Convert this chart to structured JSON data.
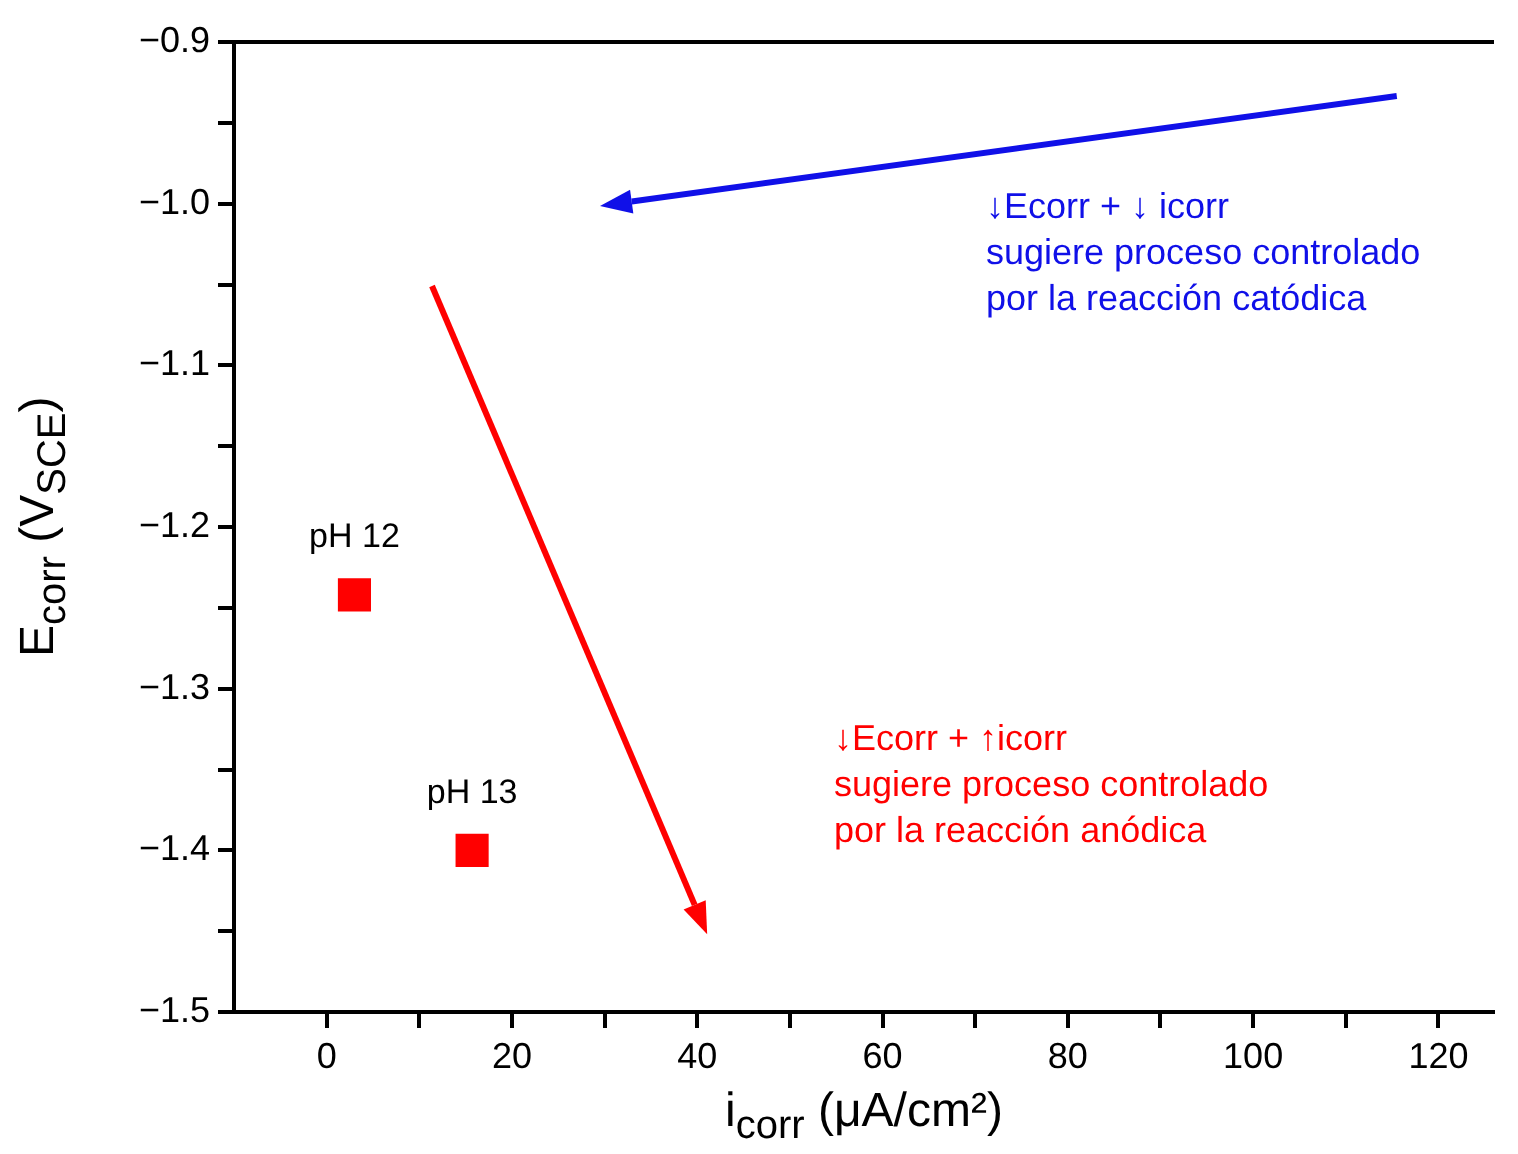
{
  "chart_data": {
    "type": "scatter",
    "xlabel": "i$_{corr}$ (μA/cm²)",
    "ylabel": "E$_{corr}$ (V$_{SCE}$)",
    "x": [
      3,
      15.7
    ],
    "series": [
      {
        "color": "#ff0000",
        "values": [
          -1.242,
          -1.4
        ]
      }
    ],
    "marker": "square",
    "grid": false,
    "legend": false,
    "xlim": [
      -10,
      126
    ],
    "ylim": [
      -1.5,
      -0.9
    ],
    "xticks": [
      0,
      {
        "value": 10,
        "label": null
      },
      20,
      {
        "value": 30,
        "label": null
      },
      40,
      {
        "value": 50,
        "label": null
      },
      60,
      {
        "value": 70,
        "label": null
      },
      80,
      {
        "value": 90,
        "label": null
      },
      100,
      {
        "value": 110,
        "label": null
      },
      120
    ],
    "yticks": [
      {
        "value": -1.5,
        "label": "−1.5"
      },
      {
        "value": -1.45,
        "label": null
      },
      {
        "value": -1.4,
        "label": "−1.4"
      },
      {
        "value": -1.35,
        "label": null
      },
      {
        "value": -1.3,
        "label": "−1.3"
      },
      {
        "value": -1.25,
        "label": null
      },
      {
        "value": -1.2,
        "label": "−1.2"
      },
      {
        "value": -1.15,
        "label": null
      },
      {
        "value": -1.1,
        "label": "−1.1"
      },
      {
        "value": -1.05,
        "label": null
      },
      {
        "value": -1.0,
        "label": "−1.0"
      },
      {
        "value": -0.95,
        "label": null
      },
      {
        "value": -0.9,
        "label": "−0.9"
      }
    ],
    "annotations": [
      {
        "text": "pH 12",
        "x": 3,
        "y": -1.242
      },
      {
        "text": "pH 13",
        "x": 15.7,
        "y": -1.4
      },
      "↓Ecorr + ↓ icorr\nsugiere proceso controlado\npor la reacción catódica",
      "↓Ecorr + ↑icorr\nsugiere proceso controlado\npor la reacción anódica"
    ]
  }
}
